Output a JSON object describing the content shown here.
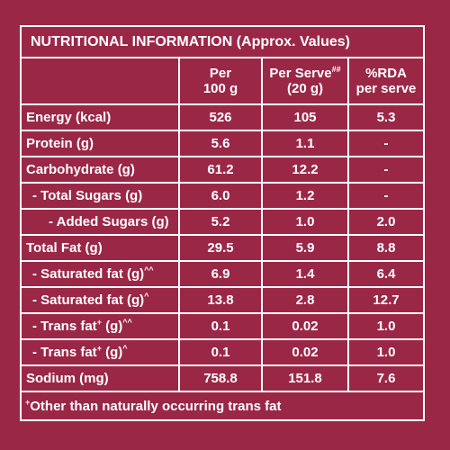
{
  "title": "NUTRITIONAL INFORMATION (Approx. Values)",
  "header": [
    [
      [
        "Per"
      ],
      [
        "100 g"
      ]
    ],
    [
      [
        "Per Serve",
        {
          "sup": "##"
        }
      ],
      [
        "(20 g)"
      ]
    ],
    [
      [
        "%RDA"
      ],
      [
        "per serve"
      ]
    ]
  ],
  "rows": [
    {
      "label": [
        "Energy (kcal)"
      ],
      "values": [
        "526",
        "105",
        "5.3"
      ]
    },
    {
      "label": [
        "Protein (g)"
      ],
      "values": [
        "5.6",
        "1.1",
        "-"
      ]
    },
    {
      "label": [
        "Carbohydrate (g)"
      ],
      "values": [
        "61.2",
        "12.2",
        "-"
      ]
    },
    {
      "label": [
        "- Total Sugars (g)"
      ],
      "values": [
        "6.0",
        "1.2",
        "-"
      ]
    },
    {
      "label": [
        "- Added Sugars (g)"
      ],
      "values": [
        "5.2",
        "1.0",
        "2.0"
      ]
    },
    {
      "label": [
        "Total Fat (g)"
      ],
      "values": [
        "29.5",
        "5.9",
        "8.8"
      ]
    },
    {
      "label": [
        "- Saturated fat (g)",
        {
          "sup": "^^"
        }
      ],
      "values": [
        "6.9",
        "1.4",
        "6.4"
      ]
    },
    {
      "label": [
        "- Saturated fat (g)",
        {
          "sup": "^"
        }
      ],
      "values": [
        "13.8",
        "2.8",
        "12.7"
      ]
    },
    {
      "label": [
        "- Trans fat",
        {
          "sup": "+"
        },
        " (g)",
        {
          "sup": "^^"
        }
      ],
      "values": [
        "0.1",
        "0.02",
        "1.0"
      ]
    },
    {
      "label": [
        "- Trans fat",
        {
          "sup": "+"
        },
        " (g)",
        {
          "sup": "^"
        }
      ],
      "values": [
        "0.1",
        "0.02",
        "1.0"
      ]
    },
    {
      "label": [
        "Sodium (mg)"
      ],
      "values": [
        "758.8",
        "151.8",
        "7.6"
      ]
    }
  ],
  "footnote": [
    {
      "sup": "+"
    },
    "Other than naturally occurring trans fat"
  ]
}
